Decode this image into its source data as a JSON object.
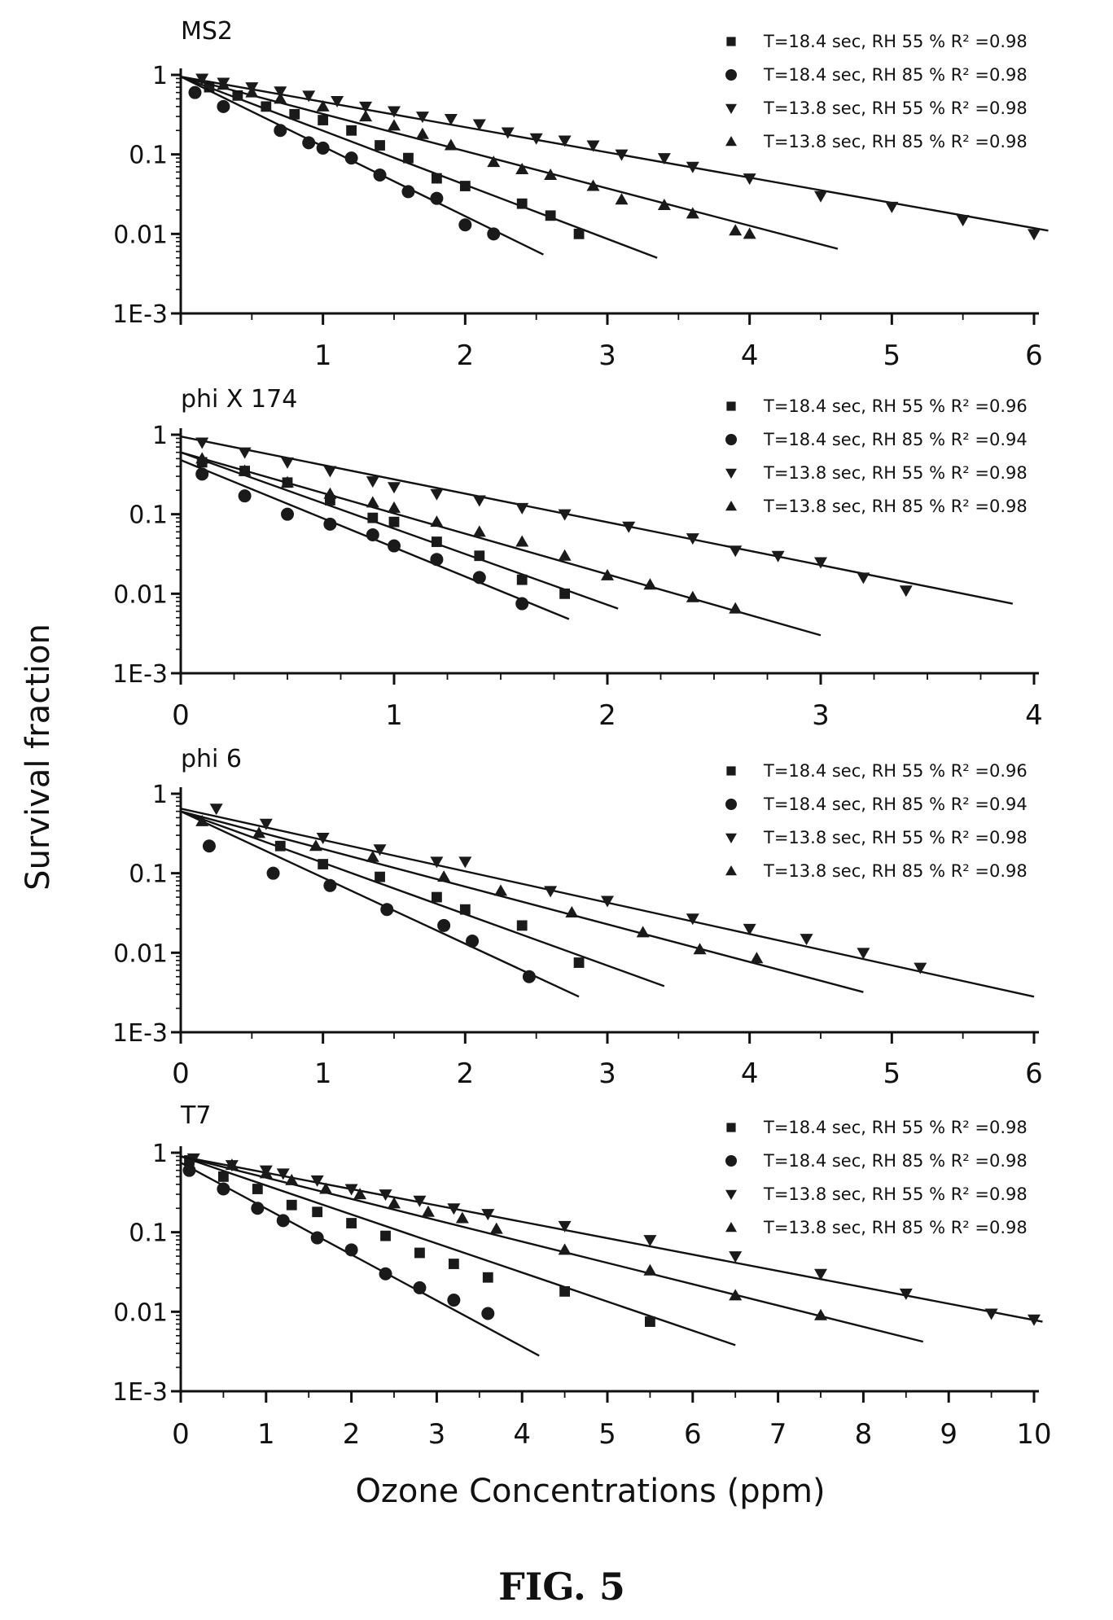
{
  "figure": {
    "ylabel": "Survival fraction",
    "xlabel": "Ozone Concentrations (ppm)",
    "caption": "FIG. 5"
  },
  "chart_data": [
    {
      "type": "scatter",
      "title": "MS2",
      "yscale": "log",
      "ylim": [
        0.001,
        1
      ],
      "yticks": [
        "1",
        "0.1",
        "0.01",
        "1E-3"
      ],
      "xlim": [
        0,
        6
      ],
      "xticks": [
        "1",
        "2",
        "3",
        "4",
        "5",
        "6"
      ],
      "xminor_step": 0.5,
      "legend_position": "top-right",
      "series": [
        {
          "name": "T=18.4 sec, RH 55 % R² =0.98",
          "marker": "square",
          "x": [
            0.2,
            0.4,
            0.6,
            0.8,
            1.0,
            1.2,
            1.4,
            1.6,
            1.8,
            2.0,
            2.4,
            2.6,
            2.8
          ],
          "y": [
            0.7,
            0.55,
            0.4,
            0.32,
            0.27,
            0.2,
            0.13,
            0.09,
            0.05,
            0.04,
            0.024,
            0.017,
            0.01
          ],
          "fit": [
            [
              0,
              0.95
            ],
            [
              3.35,
              0.005
            ]
          ]
        },
        {
          "name": "T=18.4 sec, RH 85 % R² =0.98",
          "marker": "circle",
          "x": [
            0.1,
            0.3,
            0.7,
            0.9,
            1.0,
            1.2,
            1.4,
            1.6,
            1.8,
            2.0,
            2.2
          ],
          "y": [
            0.6,
            0.4,
            0.2,
            0.14,
            0.12,
            0.09,
            0.055,
            0.034,
            0.028,
            0.013,
            0.01
          ],
          "fit": [
            [
              0,
              0.95
            ],
            [
              2.55,
              0.0055
            ]
          ]
        },
        {
          "name": "T=13.8 sec, RH 55 % R² =0.98",
          "marker": "triangle-down",
          "x": [
            0.15,
            0.3,
            0.5,
            0.7,
            0.9,
            1.1,
            1.3,
            1.5,
            1.7,
            1.9,
            2.1,
            2.3,
            2.5,
            2.7,
            2.9,
            3.1,
            3.4,
            3.6,
            4.0,
            4.5,
            5.0,
            5.5,
            6.0
          ],
          "y": [
            0.9,
            0.8,
            0.7,
            0.62,
            0.55,
            0.47,
            0.4,
            0.35,
            0.3,
            0.28,
            0.24,
            0.19,
            0.16,
            0.15,
            0.13,
            0.1,
            0.09,
            0.07,
            0.05,
            0.03,
            0.022,
            0.015,
            0.01
          ],
          "fit": [
            [
              0,
              0.95
            ],
            [
              6.1,
              0.011
            ]
          ]
        },
        {
          "name": "T=13.8 sec, RH 85 % R² =0.98",
          "marker": "triangle-up",
          "x": [
            0.3,
            0.5,
            0.7,
            1.0,
            1.3,
            1.5,
            1.7,
            1.9,
            2.2,
            2.4,
            2.6,
            2.9,
            3.1,
            3.4,
            3.6,
            3.9,
            4.0
          ],
          "y": [
            0.75,
            0.6,
            0.5,
            0.4,
            0.3,
            0.23,
            0.18,
            0.13,
            0.08,
            0.065,
            0.055,
            0.04,
            0.027,
            0.023,
            0.018,
            0.011,
            0.01
          ],
          "fit": [
            [
              0,
              0.95
            ],
            [
              4.62,
              0.0065
            ]
          ]
        }
      ]
    },
    {
      "type": "scatter",
      "title": "phi X 174",
      "yscale": "log",
      "ylim": [
        0.001,
        1
      ],
      "yticks": [
        "1",
        "0.1",
        "0.01",
        "1E-3"
      ],
      "xlim": [
        0,
        4
      ],
      "xticks": [
        "0",
        "1",
        "2",
        "3",
        "4"
      ],
      "xminor_step": 0.25,
      "legend_position": "top-right",
      "series": [
        {
          "name": "T=18.4 sec, RH 55 % R² =0.96",
          "marker": "square",
          "x": [
            0.1,
            0.3,
            0.5,
            0.7,
            0.9,
            1.0,
            1.2,
            1.4,
            1.6,
            1.8
          ],
          "y": [
            0.45,
            0.35,
            0.25,
            0.15,
            0.09,
            0.08,
            0.045,
            0.03,
            0.015,
            0.01
          ],
          "fit": [
            [
              0,
              0.6
            ],
            [
              2.05,
              0.0065
            ]
          ]
        },
        {
          "name": "T=18.4 sec, RH 85 % R² =0.94",
          "marker": "circle",
          "x": [
            0.1,
            0.3,
            0.5,
            0.7,
            0.9,
            1.0,
            1.2,
            1.4,
            1.6
          ],
          "y": [
            0.32,
            0.17,
            0.1,
            0.075,
            0.055,
            0.04,
            0.027,
            0.016,
            0.0075
          ],
          "fit": [
            [
              0,
              0.48
            ],
            [
              1.82,
              0.0048
            ]
          ]
        },
        {
          "name": "T=13.8 sec, RH 55 % R² =0.98",
          "marker": "triangle-down",
          "x": [
            0.1,
            0.3,
            0.5,
            0.7,
            0.9,
            1.0,
            1.2,
            1.4,
            1.6,
            1.8,
            2.1,
            2.4,
            2.6,
            2.8,
            3.0,
            3.2,
            3.4
          ],
          "y": [
            0.8,
            0.6,
            0.45,
            0.35,
            0.26,
            0.22,
            0.18,
            0.15,
            0.12,
            0.1,
            0.07,
            0.05,
            0.035,
            0.03,
            0.025,
            0.016,
            0.011
          ],
          "fit": [
            [
              0,
              0.95
            ],
            [
              3.9,
              0.0075
            ]
          ]
        },
        {
          "name": "T=13.8 sec, RH 85 % R² =0.98",
          "marker": "triangle-up",
          "x": [
            0.1,
            0.3,
            0.5,
            0.7,
            0.9,
            1.0,
            1.2,
            1.4,
            1.6,
            1.8,
            2.0,
            2.2,
            2.4,
            2.6
          ],
          "y": [
            0.5,
            0.35,
            0.25,
            0.18,
            0.14,
            0.12,
            0.08,
            0.06,
            0.045,
            0.03,
            0.017,
            0.013,
            0.009,
            0.0065
          ],
          "fit": [
            [
              0,
              0.6
            ],
            [
              3.0,
              0.003
            ]
          ]
        }
      ]
    },
    {
      "type": "scatter",
      "title": "phi 6",
      "yscale": "log",
      "ylim": [
        0.001,
        1
      ],
      "yticks": [
        "1",
        "0.1",
        "0.01",
        "1E-3"
      ],
      "xlim": [
        0,
        6
      ],
      "xticks": [
        "0",
        "1",
        "2",
        "3",
        "4",
        "5",
        "6"
      ],
      "xminor_step": 0.5,
      "legend_position": "top-right",
      "series": [
        {
          "name": "T=18.4 sec, RH 55 % R² =0.96",
          "marker": "square",
          "x": [
            0.7,
            1.0,
            1.4,
            1.8,
            2.0,
            2.4,
            2.8
          ],
          "y": [
            0.22,
            0.13,
            0.09,
            0.05,
            0.035,
            0.022,
            0.0075
          ],
          "fit": [
            [
              0,
              0.6
            ],
            [
              3.4,
              0.0038
            ]
          ]
        },
        {
          "name": "T=18.4 sec, RH 85 % R² =0.94",
          "marker": "circle",
          "x": [
            0.2,
            0.65,
            1.05,
            1.45,
            1.85,
            2.05,
            2.45
          ],
          "y": [
            0.22,
            0.1,
            0.07,
            0.035,
            0.022,
            0.014,
            0.005
          ],
          "fit": [
            [
              0,
              0.6
            ],
            [
              2.8,
              0.0028
            ]
          ]
        },
        {
          "name": "T=13.8 sec, RH 55 % R² =0.98",
          "marker": "triangle-down",
          "x": [
            0.25,
            0.6,
            1.0,
            1.4,
            1.8,
            2.0,
            2.6,
            3.0,
            3.6,
            4.0,
            4.4,
            4.8,
            5.2
          ],
          "y": [
            0.65,
            0.42,
            0.28,
            0.2,
            0.14,
            0.14,
            0.06,
            0.045,
            0.027,
            0.02,
            0.015,
            0.01,
            0.0065
          ],
          "fit": [
            [
              0,
              0.65
            ],
            [
              6.0,
              0.0028
            ]
          ]
        },
        {
          "name": "T=13.8 sec, RH 85 % R² =0.98",
          "marker": "triangle-up",
          "x": [
            0.15,
            0.55,
            0.95,
            1.35,
            1.85,
            2.25,
            2.75,
            3.25,
            3.65,
            4.05
          ],
          "y": [
            0.45,
            0.32,
            0.22,
            0.16,
            0.09,
            0.06,
            0.032,
            0.018,
            0.011,
            0.0085
          ],
          "fit": [
            [
              0,
              0.6
            ],
            [
              4.8,
              0.0032
            ]
          ]
        }
      ]
    },
    {
      "type": "scatter",
      "title": "T7",
      "yscale": "log",
      "ylim": [
        0.001,
        1
      ],
      "yticks": [
        "1",
        "0.1",
        "0.01",
        "1E-3"
      ],
      "xlim": [
        0,
        10
      ],
      "xticks": [
        "0",
        "1",
        "2",
        "3",
        "4",
        "5",
        "6",
        "7",
        "8",
        "9",
        "10"
      ],
      "xminor_step": 0.5,
      "legend_position": "top-right",
      "series": [
        {
          "name": "T=18.4 sec, RH 55 % R² =0.98",
          "marker": "square",
          "x": [
            0.1,
            0.5,
            0.9,
            1.3,
            1.6,
            2.0,
            2.4,
            2.8,
            3.2,
            3.6,
            4.5,
            5.5
          ],
          "y": [
            0.8,
            0.5,
            0.35,
            0.22,
            0.18,
            0.13,
            0.09,
            0.055,
            0.04,
            0.027,
            0.018,
            0.0075
          ],
          "fit": [
            [
              0,
              0.9
            ],
            [
              6.5,
              0.0038
            ]
          ]
        },
        {
          "name": "T=18.4 sec, RH 85 % R² =0.98",
          "marker": "circle",
          "x": [
            0.1,
            0.5,
            0.9,
            1.2,
            1.6,
            2.0,
            2.4,
            2.8,
            3.2,
            3.6
          ],
          "y": [
            0.6,
            0.35,
            0.2,
            0.14,
            0.085,
            0.06,
            0.03,
            0.02,
            0.014,
            0.0095
          ],
          "fit": [
            [
              0,
              0.75
            ],
            [
              4.2,
              0.0028
            ]
          ]
        },
        {
          "name": "T=13.8 sec, RH 55 % R² =0.98",
          "marker": "triangle-down",
          "x": [
            0.15,
            0.6,
            1.0,
            1.2,
            1.6,
            2.0,
            2.4,
            2.8,
            3.2,
            3.6,
            4.5,
            5.5,
            6.5,
            7.5,
            8.5,
            9.5,
            10.0
          ],
          "y": [
            0.85,
            0.7,
            0.6,
            0.55,
            0.45,
            0.35,
            0.3,
            0.25,
            0.2,
            0.17,
            0.12,
            0.08,
            0.05,
            0.03,
            0.017,
            0.0095,
            0.008
          ],
          "fit": [
            [
              0,
              0.9
            ],
            [
              10.1,
              0.0075
            ]
          ]
        },
        {
          "name": "T=13.8 sec, RH 85 % R² =0.98",
          "marker": "triangle-up",
          "x": [
            0.6,
            1.0,
            1.3,
            1.7,
            2.1,
            2.5,
            2.9,
            3.3,
            3.7,
            4.5,
            5.5,
            6.5,
            7.5
          ],
          "y": [
            0.7,
            0.55,
            0.45,
            0.35,
            0.3,
            0.23,
            0.18,
            0.15,
            0.11,
            0.06,
            0.033,
            0.016,
            0.009
          ],
          "fit": [
            [
              0,
              0.9
            ],
            [
              8.7,
              0.0042
            ]
          ]
        }
      ]
    }
  ]
}
